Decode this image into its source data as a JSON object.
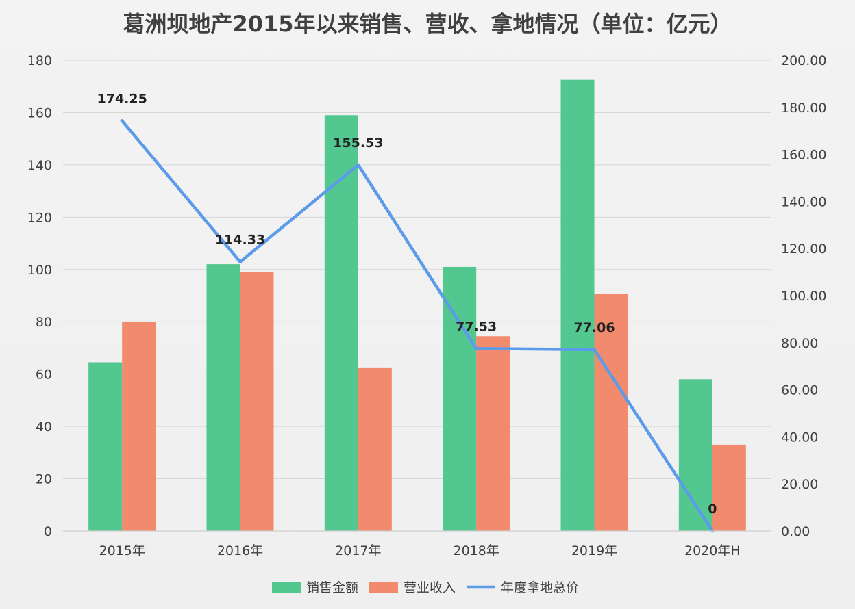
{
  "chart_data": {
    "type": "bar",
    "title": "葛洲坝地产2015年以来销售、营收、拿地情况（单位：亿元）",
    "categories": [
      "2015年",
      "2016年",
      "2017年",
      "2018年",
      "2019年",
      "2020年H"
    ],
    "series": [
      {
        "name": "销售金额",
        "type": "bar",
        "axis": "left",
        "color": "#52c78f",
        "values": [
          64.5,
          102,
          159,
          101,
          172.5,
          58
        ]
      },
      {
        "name": "营业收入",
        "type": "bar",
        "axis": "left",
        "color": "#f28a6e",
        "values": [
          79.8,
          99,
          62.3,
          74.5,
          90.6,
          33
        ]
      },
      {
        "name": "年度拿地总价",
        "type": "line",
        "axis": "right",
        "color": "#5b9bea",
        "values": [
          174.25,
          114.33,
          155.53,
          77.53,
          77.06,
          0
        ],
        "labels": [
          "174.25",
          "114.33",
          "155.53",
          "77.53",
          "77.06",
          "0"
        ]
      }
    ],
    "y_left": {
      "ylim": [
        0,
        180
      ],
      "ticks": [
        "0",
        "20",
        "40",
        "60",
        "80",
        "100",
        "120",
        "140",
        "160",
        "180"
      ]
    },
    "y_right": {
      "ylim": [
        0,
        200
      ],
      "ticks": [
        "0.00",
        "20.00",
        "40.00",
        "60.00",
        "80.00",
        "100.00",
        "120.00",
        "140.00",
        "160.00",
        "180.00",
        "200.00"
      ]
    },
    "grid": true,
    "legend_position": "bottom"
  }
}
